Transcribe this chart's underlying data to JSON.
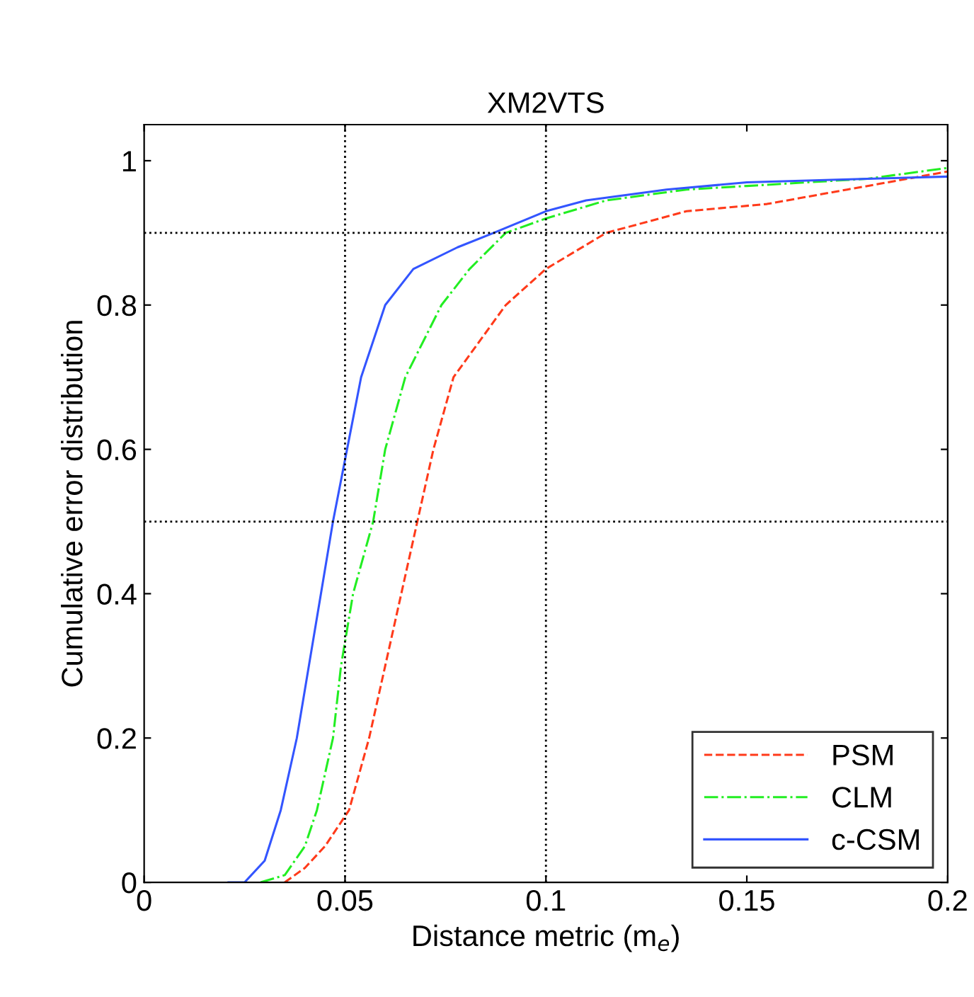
{
  "chart_data": {
    "type": "line",
    "title": "XM2VTS",
    "xlabel": "Distance metric (m$_{e}$)",
    "ylabel": "Cumulative error distribution",
    "xlim": [
      0,
      0.2
    ],
    "ylim": [
      0,
      1.05
    ],
    "xticks": [
      0,
      0.05,
      0.1,
      0.15,
      0.2
    ],
    "yticks": [
      0,
      0.2,
      0.4,
      0.6,
      0.8,
      1
    ],
    "legend": "bottom right",
    "grid": false,
    "ref_lines": [
      {
        "axis": "x",
        "value": 0.05,
        "color": "#000000",
        "line_style": "dotted"
      },
      {
        "axis": "x",
        "value": 0.1,
        "color": "#000000",
        "line_style": "dotted"
      },
      {
        "axis": "y",
        "value": 0.5,
        "color": "#000000",
        "line_style": "dotted"
      },
      {
        "axis": "y",
        "value": 0.9,
        "color": "#000000",
        "line_style": "dotted"
      }
    ],
    "series": [
      {
        "name": "PSM",
        "color": "#ff3a1a",
        "line_style": "dashed",
        "x": [
          0.035,
          0.04,
          0.045,
          0.051,
          0.056,
          0.06,
          0.064,
          0.068,
          0.072,
          0.077,
          0.09,
          0.1,
          0.115,
          0.135,
          0.155,
          0.175,
          0.2
        ],
        "values": [
          0,
          0.02,
          0.05,
          0.1,
          0.2,
          0.3,
          0.4,
          0.5,
          0.6,
          0.7,
          0.8,
          0.85,
          0.9,
          0.93,
          0.94,
          0.96,
          0.985
        ]
      },
      {
        "name": "CLM",
        "color": "#22ee22",
        "line_style": "dashdot",
        "x": [
          0.029,
          0.035,
          0.04,
          0.043,
          0.047,
          0.049,
          0.052,
          0.057,
          0.06,
          0.065,
          0.074,
          0.081,
          0.09,
          0.1,
          0.115,
          0.135,
          0.15,
          0.18,
          0.2
        ],
        "values": [
          0,
          0.01,
          0.05,
          0.1,
          0.2,
          0.3,
          0.4,
          0.5,
          0.6,
          0.7,
          0.8,
          0.85,
          0.9,
          0.92,
          0.945,
          0.96,
          0.965,
          0.975,
          0.99
        ]
      },
      {
        "name": "c-CSM",
        "color": "#3355ff",
        "line_style": "solid",
        "x": [
          0.021,
          0.025,
          0.03,
          0.034,
          0.038,
          0.041,
          0.044,
          0.047,
          0.0505,
          0.054,
          0.06,
          0.067,
          0.078,
          0.087,
          0.1,
          0.11,
          0.13,
          0.15,
          0.18,
          0.2
        ],
        "values": [
          0,
          0,
          0.03,
          0.1,
          0.2,
          0.3,
          0.4,
          0.5,
          0.6,
          0.7,
          0.8,
          0.85,
          0.88,
          0.9,
          0.93,
          0.945,
          0.96,
          0.97,
          0.975,
          0.978
        ]
      }
    ]
  }
}
